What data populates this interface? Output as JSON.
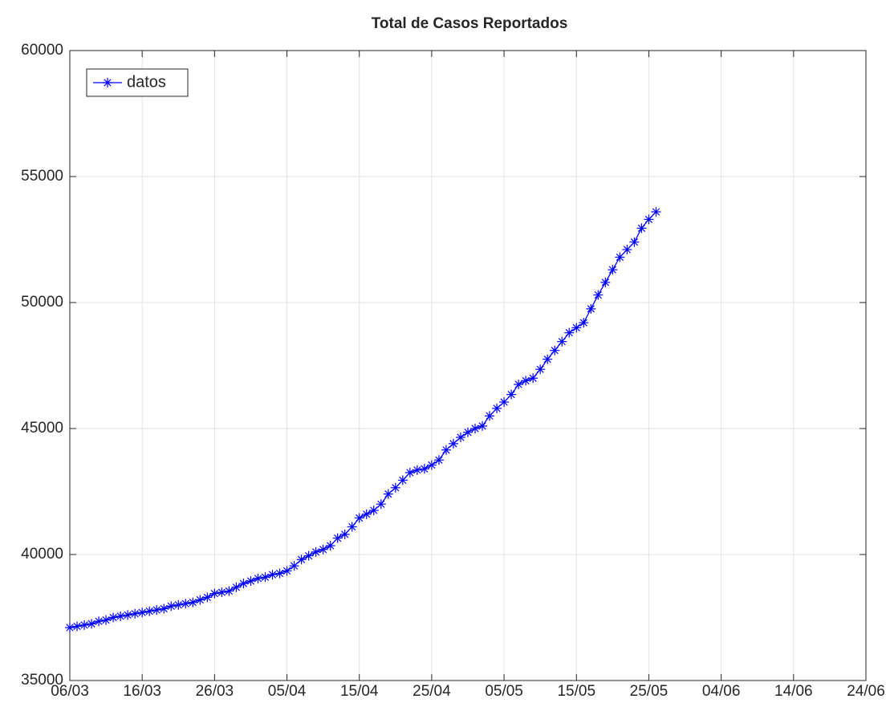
{
  "chart_data": {
    "type": "line",
    "title": "Total de Casos Reportados",
    "x": [
      "06/03",
      "07/03",
      "08/03",
      "09/03",
      "10/03",
      "11/03",
      "12/03",
      "13/03",
      "14/03",
      "15/03",
      "16/03",
      "17/03",
      "18/03",
      "19/03",
      "20/03",
      "21/03",
      "22/03",
      "23/03",
      "24/03",
      "25/03",
      "26/03",
      "27/03",
      "28/03",
      "29/03",
      "30/03",
      "31/03",
      "01/04",
      "02/04",
      "03/04",
      "04/04",
      "05/04",
      "06/04",
      "07/04",
      "08/04",
      "09/04",
      "10/04",
      "11/04",
      "12/04",
      "13/04",
      "14/04",
      "15/04",
      "16/04",
      "17/04",
      "18/04",
      "19/04",
      "20/04",
      "21/04",
      "22/04",
      "23/04",
      "24/04",
      "25/04",
      "26/04",
      "27/04",
      "28/04",
      "29/04",
      "30/04",
      "01/05",
      "02/05",
      "03/05",
      "04/05",
      "05/05",
      "06/05",
      "07/05",
      "08/05",
      "09/05",
      "10/05",
      "11/05",
      "12/05",
      "13/05",
      "14/05",
      "15/05",
      "16/05",
      "17/05",
      "18/05",
      "19/05",
      "20/05",
      "21/05",
      "22/05",
      "23/05",
      "24/05",
      "25/05",
      "26/05"
    ],
    "series": [
      {
        "name": "datos",
        "color": "#0000ff",
        "values": [
          37100,
          37150,
          37200,
          37250,
          37350,
          37400,
          37500,
          37550,
          37600,
          37650,
          37700,
          37750,
          37800,
          37850,
          37950,
          38000,
          38050,
          38100,
          38200,
          38300,
          38450,
          38500,
          38550,
          38700,
          38850,
          38950,
          39050,
          39100,
          39200,
          39250,
          39350,
          39550,
          39800,
          39950,
          40100,
          40200,
          40350,
          40650,
          40800,
          41100,
          41450,
          41600,
          41750,
          42000,
          42400,
          42650,
          42950,
          43250,
          43350,
          43400,
          43550,
          43750,
          44150,
          44400,
          44650,
          44850,
          45000,
          45100,
          45500,
          45800,
          46050,
          46350,
          46750,
          46900,
          47000,
          47350,
          47750,
          48100,
          48450,
          48800,
          49000,
          49200,
          49750,
          50300,
          50800,
          51300,
          51800,
          52100,
          52400,
          52950,
          53300,
          53600
        ]
      }
    ],
    "xlim": [
      "06/03",
      "24/06"
    ],
    "xticks": [
      "06/03",
      "16/03",
      "26/03",
      "05/04",
      "15/04",
      "25/04",
      "05/05",
      "15/05",
      "25/05",
      "04/06",
      "14/06",
      "24/06"
    ],
    "ylim": [
      35000,
      60000
    ],
    "yticks": [
      35000,
      40000,
      45000,
      50000,
      55000,
      60000
    ],
    "grid": true,
    "legend": "upper left"
  }
}
